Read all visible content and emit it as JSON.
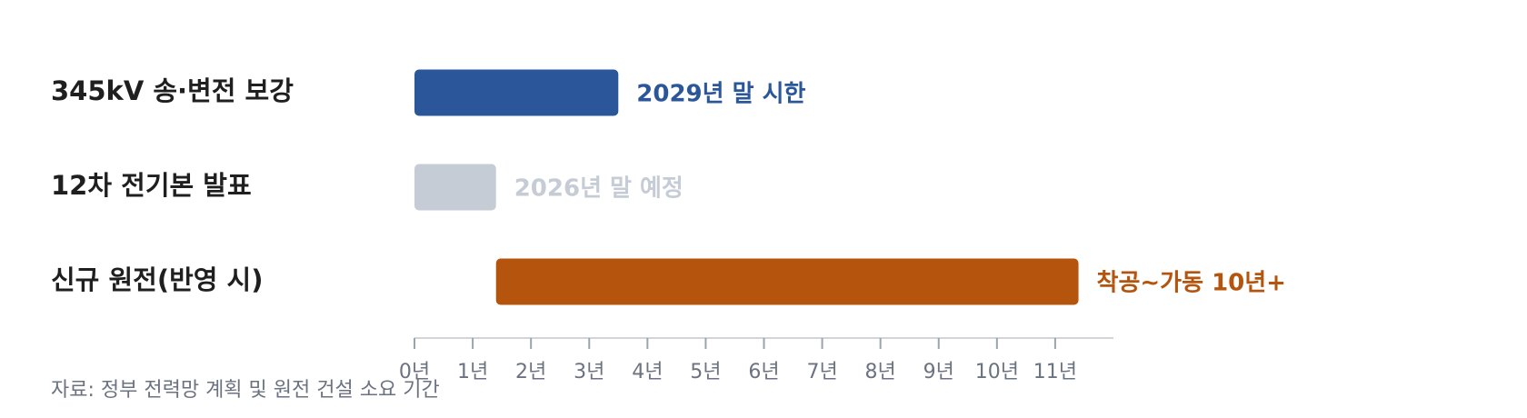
{
  "chart_data": {
    "type": "range-bar",
    "categories": [
      "345kV 송·변전 보강",
      "12차 전기본 발표",
      "신규 원전(반영 시)"
    ],
    "starts": [
      0,
      0,
      1.4
    ],
    "ends": [
      3.5,
      1.4,
      11.4
    ],
    "colors": [
      "#2b579a",
      "#c5ccd6",
      "#b5540c"
    ],
    "annotations": [
      "2029년 말 시한",
      "2026년 말 예정",
      "착공~가동 10년+"
    ],
    "xlim": [
      0,
      12
    ],
    "xticks": [
      {
        "value": 0,
        "label": "0년"
      },
      {
        "value": 1,
        "label": "1년"
      },
      {
        "value": 2,
        "label": "2년"
      },
      {
        "value": 3,
        "label": "3년"
      },
      {
        "value": 4,
        "label": "4년"
      },
      {
        "value": 5,
        "label": "5년"
      },
      {
        "value": 6,
        "label": "6년"
      },
      {
        "value": 7,
        "label": "7년"
      },
      {
        "value": 8,
        "label": "8년"
      },
      {
        "value": 9,
        "label": "9년"
      },
      {
        "value": 10,
        "label": "10년"
      },
      {
        "value": 11,
        "label": "11년"
      }
    ],
    "source": "자료: 정부 전력망 계획 및 원전 건설 소요 기간"
  }
}
